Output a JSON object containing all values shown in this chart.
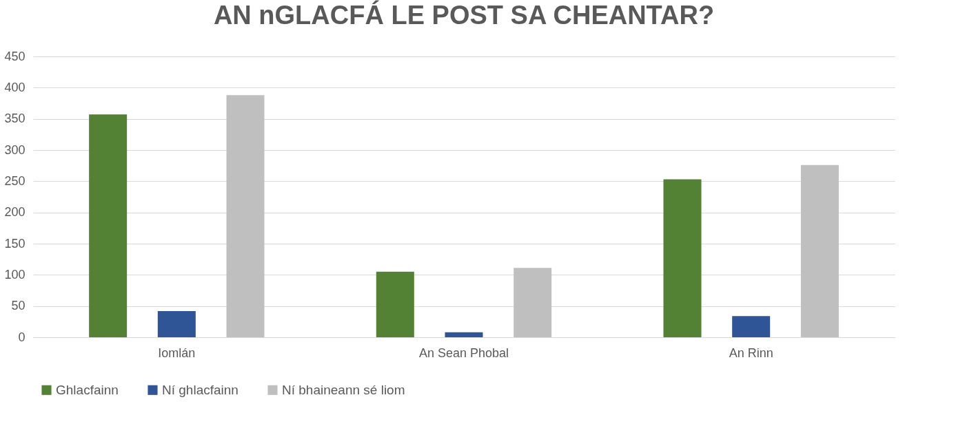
{
  "chart_data": {
    "type": "bar",
    "title": "AN nGLACFÁ LE POST SA CHEANTAR?",
    "categories": [
      "Iomlán",
      "An Sean Phobal",
      "An Rinn"
    ],
    "series": [
      {
        "name": "Ghlacfainn",
        "color": "#548235",
        "values": [
          357,
          105,
          253
        ]
      },
      {
        "name": "Ní ghlacfainn",
        "color": "#2f5597",
        "values": [
          42,
          8,
          34
        ]
      },
      {
        "name": "Ní bhaineann sé liom",
        "color": "#bfbfbf",
        "values": [
          388,
          111,
          276
        ]
      }
    ],
    "ylim": [
      0,
      450
    ],
    "yticks": [
      0,
      50,
      100,
      150,
      200,
      250,
      300,
      350,
      400,
      450
    ],
    "grid": "y",
    "legend": "bottom"
  }
}
